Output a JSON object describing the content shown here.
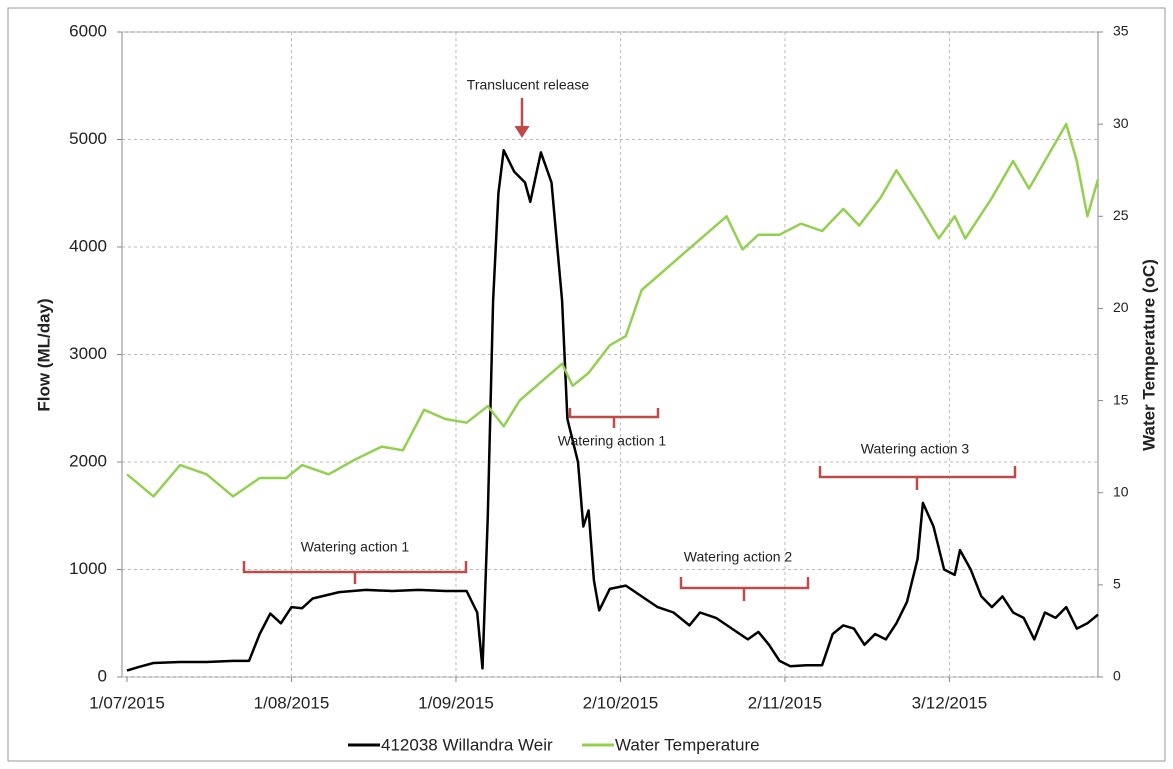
{
  "chart_data": {
    "type": "line",
    "y_label": "Flow (ML/day)",
    "y2_label": "Water Temperature (oC)",
    "xlim": [
      "2015-07-01",
      "2015-12-31"
    ],
    "xticks": [
      {
        "value": "2015-07-01",
        "label": "1/07/2015"
      },
      {
        "value": "2015-08-01",
        "label": "1/08/2015"
      },
      {
        "value": "2015-09-01",
        "label": "1/09/2015"
      },
      {
        "value": "2015-10-02",
        "label": "2/10/2015"
      },
      {
        "value": "2015-11-02",
        "label": "2/11/2015"
      },
      {
        "value": "2015-12-03",
        "label": "3/12/2015"
      }
    ],
    "ylim": [
      0,
      6000
    ],
    "yticks": [
      0,
      1000,
      2000,
      3000,
      4000,
      5000,
      6000
    ],
    "y2lim": [
      0,
      35
    ],
    "y2ticks": [
      0,
      5,
      10,
      15,
      20,
      25,
      30,
      35
    ],
    "grid": true,
    "legend": "bottom",
    "series": [
      {
        "name": "412038 Willandra Weir",
        "color": "#000000",
        "x": [
          "2015-07-01",
          "2015-07-03",
          "2015-07-06",
          "2015-07-11",
          "2015-07-16",
          "2015-07-21",
          "2015-07-24",
          "2015-07-26",
          "2015-07-28",
          "2015-07-30",
          "2015-08-01",
          "2015-08-03",
          "2015-08-05",
          "2015-08-10",
          "2015-08-15",
          "2015-08-20",
          "2015-08-25",
          "2015-08-30",
          "2015-09-03",
          "2015-09-05",
          "2015-09-06",
          "2015-09-07",
          "2015-09-08",
          "2015-09-09",
          "2015-09-10",
          "2015-09-12",
          "2015-09-14",
          "2015-09-15",
          "2015-09-17",
          "2015-09-19",
          "2015-09-21",
          "2015-09-22",
          "2015-09-24",
          "2015-09-25",
          "2015-09-26",
          "2015-09-27",
          "2015-09-28",
          "2015-09-30",
          "2015-10-03",
          "2015-10-06",
          "2015-10-09",
          "2015-10-12",
          "2015-10-15",
          "2015-10-17",
          "2015-10-20",
          "2015-10-23",
          "2015-10-26",
          "2015-10-28",
          "2015-10-30",
          "2015-11-01",
          "2015-11-03",
          "2015-11-06",
          "2015-11-09",
          "2015-11-11",
          "2015-11-13",
          "2015-11-15",
          "2015-11-17",
          "2015-11-19",
          "2015-11-21",
          "2015-11-23",
          "2015-11-25",
          "2015-11-27",
          "2015-11-28",
          "2015-11-30",
          "2015-12-02",
          "2015-12-04",
          "2015-12-05",
          "2015-12-07",
          "2015-12-09",
          "2015-12-11",
          "2015-12-13",
          "2015-12-15",
          "2015-12-17",
          "2015-12-19",
          "2015-12-21",
          "2015-12-23",
          "2015-12-25",
          "2015-12-27",
          "2015-12-29",
          "2015-12-31"
        ],
        "values": [
          60,
          90,
          130,
          140,
          140,
          150,
          150,
          400,
          590,
          500,
          650,
          640,
          730,
          790,
          810,
          800,
          810,
          800,
          800,
          600,
          80,
          1500,
          3500,
          4500,
          4900,
          4700,
          4600,
          4420,
          4880,
          4600,
          3500,
          2400,
          2000,
          1400,
          1550,
          900,
          620,
          820,
          850,
          750,
          650,
          600,
          480,
          600,
          550,
          450,
          350,
          420,
          300,
          150,
          100,
          110,
          110,
          400,
          480,
          450,
          300,
          400,
          350,
          500,
          700,
          1100,
          1620,
          1400,
          1000,
          950,
          1180,
          1000,
          750,
          650,
          750,
          600,
          550,
          350,
          600,
          550,
          650,
          450,
          500,
          580
        ]
      },
      {
        "name": "Water Temperature",
        "color": "#92d050",
        "axis": "y2",
        "x": [
          "2015-07-01",
          "2015-07-06",
          "2015-07-11",
          "2015-07-16",
          "2015-07-21",
          "2015-07-26",
          "2015-07-31",
          "2015-08-03",
          "2015-08-08",
          "2015-08-13",
          "2015-08-18",
          "2015-08-22",
          "2015-08-26",
          "2015-08-30",
          "2015-09-03",
          "2015-09-07",
          "2015-09-10",
          "2015-09-13",
          "2015-09-17",
          "2015-09-21",
          "2015-09-23",
          "2015-09-26",
          "2015-09-30",
          "2015-10-03",
          "2015-10-06",
          "2015-10-10",
          "2015-10-14",
          "2015-10-18",
          "2015-10-22",
          "2015-10-25",
          "2015-10-28",
          "2015-11-01",
          "2015-11-05",
          "2015-11-09",
          "2015-11-13",
          "2015-11-16",
          "2015-11-20",
          "2015-11-23",
          "2015-11-27",
          "2015-12-01",
          "2015-12-04",
          "2015-12-06",
          "2015-12-11",
          "2015-12-15",
          "2015-12-18",
          "2015-12-22",
          "2015-12-25",
          "2015-12-27",
          "2015-12-29",
          "2015-12-31"
        ],
        "values": [
          11,
          9.8,
          11.5,
          11,
          9.8,
          10.8,
          10.8,
          11.5,
          11,
          11.8,
          12.5,
          12.3,
          14.5,
          14,
          13.8,
          14.7,
          13.6,
          15,
          16,
          17,
          15.8,
          16.5,
          18,
          18.5,
          21,
          22,
          23,
          24,
          25,
          23.2,
          24,
          24,
          24.6,
          24.2,
          25.4,
          24.5,
          26,
          27.5,
          25.7,
          23.8,
          25,
          23.8,
          26,
          28,
          26.5,
          28.5,
          30,
          28,
          25,
          27
        ]
      }
    ],
    "annotations": [
      {
        "text": "Translucent release"
      },
      {
        "text": "Watering action 1"
      },
      {
        "text": "Watering action 1"
      },
      {
        "text": "Watering action 2"
      },
      {
        "text": "Watering action 3"
      }
    ]
  }
}
